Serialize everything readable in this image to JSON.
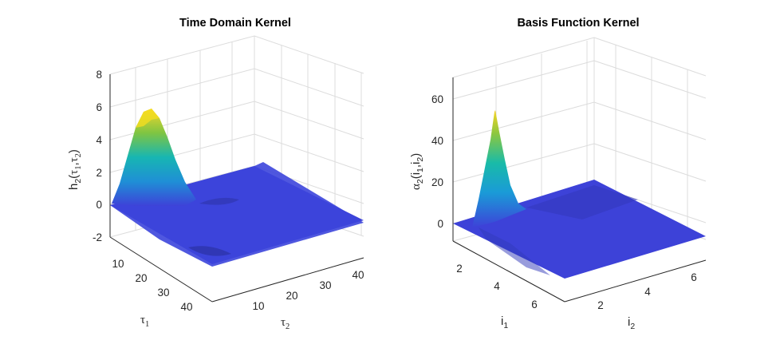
{
  "chart_data": [
    {
      "type": "surface",
      "title": "Time Domain Kernel",
      "xlabel": {
        "base": "τ",
        "sub": "1"
      },
      "ylabel": {
        "base": "τ",
        "sub": "2"
      },
      "zlabel": {
        "pre": "h",
        "presub": "2",
        "open": "(",
        "a": "τ",
        "asub": "1",
        "comma": ",",
        "b": "τ",
        "bsub": "2",
        "close": ")"
      },
      "x_ticks": [
        "10",
        "20",
        "30",
        "40"
      ],
      "y_ticks": [
        "10",
        "20",
        "30",
        "40"
      ],
      "z_ticks": [
        "-2",
        "0",
        "2",
        "4",
        "6",
        "8"
      ],
      "xlim": [
        1,
        45
      ],
      "ylim": [
        1,
        45
      ],
      "zlim": [
        -2,
        8
      ],
      "grid": true,
      "peak": {
        "tau1": 8,
        "tau2": 1,
        "value": 5.9
      },
      "colormap": "parula"
    },
    {
      "type": "surface",
      "title": "Basis Function Kernel",
      "xlabel": {
        "base": "i",
        "sub": "1"
      },
      "ylabel": {
        "base": "i",
        "sub": "2"
      },
      "zlabel": {
        "pre": "α",
        "presub": "2",
        "open": "(",
        "a": "i",
        "asub": "1",
        "comma": ",",
        "b": "i",
        "bsub": "2",
        "close": ")"
      },
      "x_ticks": [
        "2",
        "4",
        "6"
      ],
      "y_ticks": [
        "2",
        "4",
        "6"
      ],
      "z_ticks": [
        "0",
        "20",
        "40",
        "60"
      ],
      "xlim": [
        1,
        7
      ],
      "ylim": [
        1,
        7
      ],
      "zlim": [
        -10,
        70
      ],
      "grid": true,
      "peak": {
        "i1": 2,
        "i2": 1,
        "value": 53
      },
      "colormap": "parula"
    }
  ]
}
